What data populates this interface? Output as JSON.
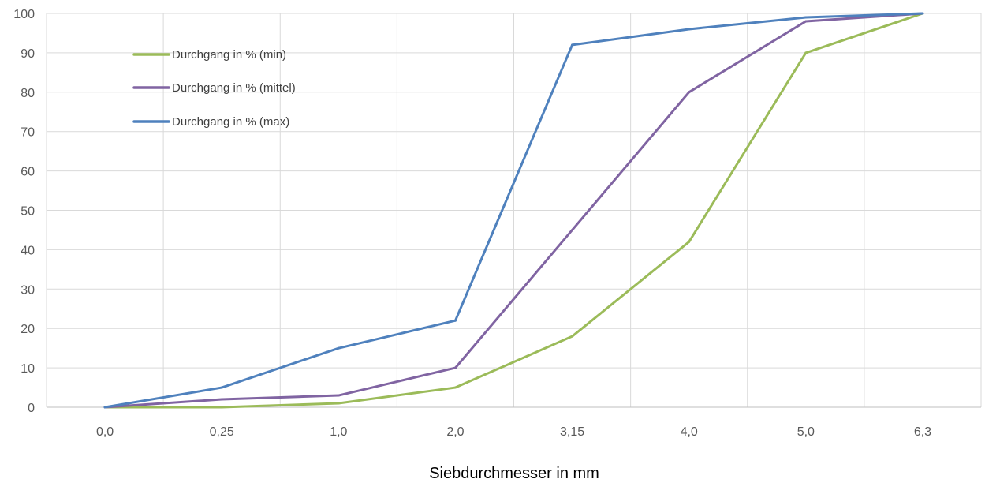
{
  "chart_data": {
    "type": "line",
    "categories": [
      "0,0",
      "0,25",
      "1,0",
      "2,0",
      "3,15",
      "4,0",
      "5,0",
      "6,3"
    ],
    "series": [
      {
        "name": "Durchgang in % (min)",
        "values": [
          0,
          0,
          1,
          5,
          18,
          42,
          90,
          100
        ],
        "color": "#9BBB59"
      },
      {
        "name": "Durchgang in % (mittel)",
        "values": [
          0,
          2,
          3,
          10,
          45,
          80,
          98,
          100
        ],
        "color": "#8064A2"
      },
      {
        "name": "Durchgang in % (max)",
        "values": [
          0,
          5,
          15,
          22,
          92,
          96,
          99,
          100
        ],
        "color": "#4F81BD"
      }
    ],
    "yticks": [
      "0",
      "10",
      "20",
      "30",
      "40",
      "50",
      "60",
      "70",
      "80",
      "90",
      "100"
    ],
    "ylim": [
      0,
      100
    ],
    "xlabel": "Siebdurchmesser in mm",
    "ylabel": "",
    "grid": true,
    "legend_position": "top-left inside plot"
  }
}
